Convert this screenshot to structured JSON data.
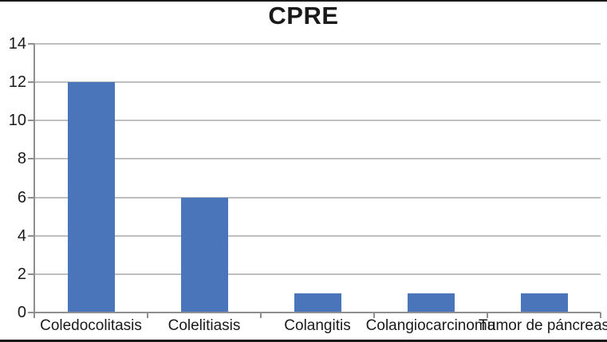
{
  "figure": {
    "title": "CPRE",
    "colors": {
      "bar": "#4a75ba",
      "gridline": "#bfbfbf",
      "axis": "#8f8f8f",
      "text": "#1a1a1a",
      "border": "#1a1a1a",
      "background": "#ffffff"
    }
  },
  "chart_data": {
    "type": "bar",
    "title": "CPRE",
    "categories": [
      "Coledocolitasis",
      "Colelitiasis",
      "Colangitis",
      "Colangiocarcinoma",
      "Tumor de páncreas"
    ],
    "values": [
      12,
      6,
      1,
      1,
      1
    ],
    "xlabel": "",
    "ylabel": "",
    "ylim": [
      0,
      14
    ],
    "yticks": [
      0,
      2,
      4,
      6,
      8,
      10,
      12,
      14
    ],
    "grid": true,
    "legend": false,
    "bar_color": "#4a75ba"
  }
}
